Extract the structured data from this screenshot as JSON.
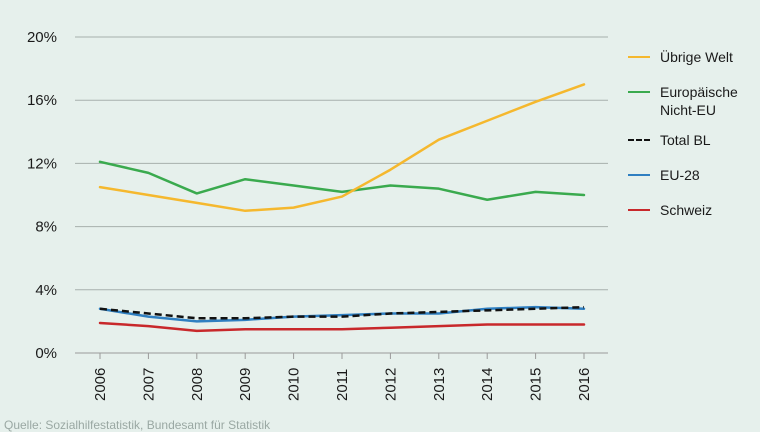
{
  "chart_data": {
    "type": "line",
    "x": [
      "2006",
      "2007",
      "2008",
      "2009",
      "2010",
      "2011",
      "2012",
      "2013",
      "2014",
      "2015",
      "2016"
    ],
    "ylim": [
      0,
      20
    ],
    "yticks": [
      0,
      4,
      8,
      12,
      16,
      20
    ],
    "ytick_labels": [
      "0%",
      "4%",
      "8%",
      "12%",
      "16%",
      "20%"
    ],
    "grid": true,
    "legend_position": "right",
    "series": [
      {
        "name": "Übrige Welt",
        "color": "#f5b82e",
        "dashed": false,
        "values": [
          10.5,
          10.0,
          9.5,
          9.0,
          9.2,
          9.9,
          11.6,
          13.5,
          14.7,
          15.9,
          17.0
        ]
      },
      {
        "name": "Europäische Nicht-EU",
        "legend_lines": [
          "Europäische",
          "Nicht-EU"
        ],
        "color": "#3aaa4e",
        "dashed": false,
        "values": [
          12.1,
          11.4,
          10.1,
          11.0,
          10.6,
          10.2,
          10.6,
          10.4,
          9.7,
          10.2,
          10.0
        ]
      },
      {
        "name": "Total BL",
        "color": "#111111",
        "dashed": true,
        "values": [
          2.8,
          2.5,
          2.2,
          2.2,
          2.3,
          2.3,
          2.5,
          2.6,
          2.7,
          2.8,
          2.9
        ]
      },
      {
        "name": "EU-28",
        "color": "#2f7fc1",
        "dashed": false,
        "values": [
          2.8,
          2.3,
          2.0,
          2.1,
          2.3,
          2.4,
          2.5,
          2.5,
          2.8,
          2.9,
          2.8
        ]
      },
      {
        "name": "Schweiz",
        "color": "#c8282b",
        "dashed": false,
        "values": [
          1.9,
          1.7,
          1.4,
          1.5,
          1.5,
          1.5,
          1.6,
          1.7,
          1.8,
          1.8,
          1.8
        ]
      }
    ]
  },
  "source_text": "Quelle: Sozialhilfestatistik, Bundesamt für Statistik"
}
